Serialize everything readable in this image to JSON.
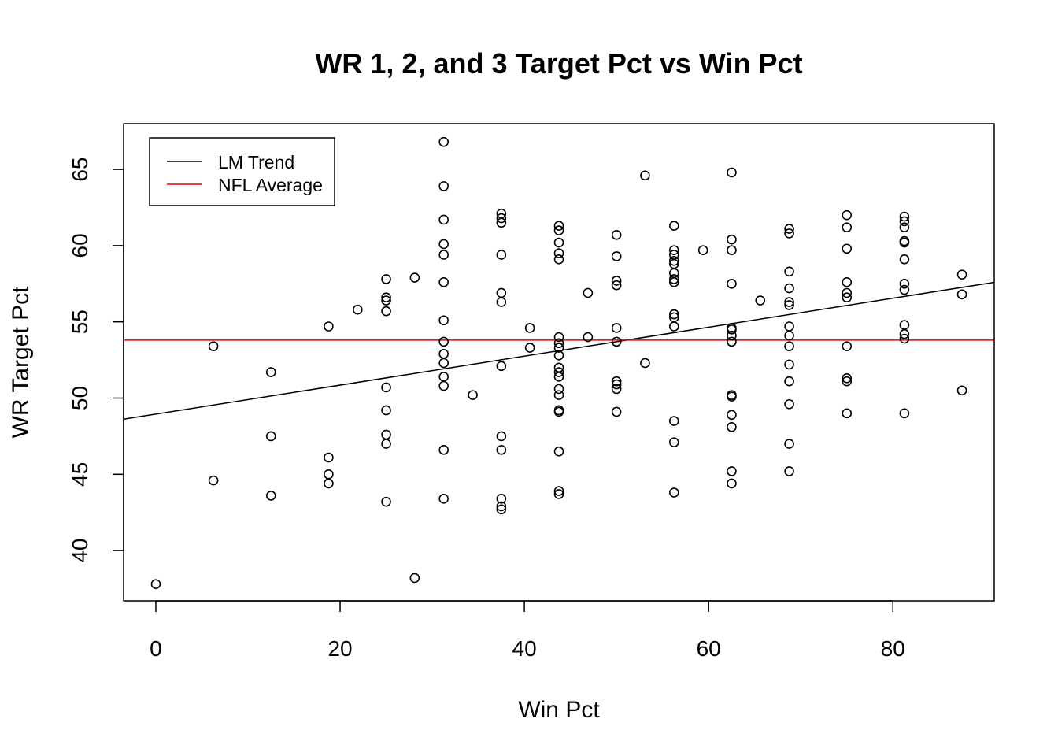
{
  "chart_data": {
    "type": "scatter",
    "title": "WR 1, 2, and 3 Target Pct vs Win Pct",
    "xlabel": "Win Pct",
    "ylabel": "WR Target Pct",
    "xlim": [
      -3.5,
      91
    ],
    "ylim": [
      36.7,
      68
    ],
    "xticks": [
      0,
      20,
      40,
      60,
      80
    ],
    "yticks": [
      40,
      45,
      50,
      55,
      60,
      65
    ],
    "grid": false,
    "legend": {
      "placement": "top-left",
      "entries": [
        {
          "label": "LM Trend",
          "color": "#000000"
        },
        {
          "label": "NFL Average",
          "color": "#dd0000"
        }
      ]
    },
    "lines": {
      "lm_trend": {
        "intercept": 48.95,
        "slope": 0.095,
        "color": "#000000"
      },
      "nfl_average": {
        "y": 53.8,
        "color": "#dd0000"
      }
    },
    "points": [
      [
        0,
        37.8
      ],
      [
        6.25,
        53.4
      ],
      [
        6.25,
        44.6
      ],
      [
        12.5,
        51.7
      ],
      [
        12.5,
        47.5
      ],
      [
        12.5,
        43.6
      ],
      [
        18.75,
        54.7
      ],
      [
        18.75,
        46.1
      ],
      [
        18.75,
        45.0
      ],
      [
        18.75,
        44.4
      ],
      [
        21.9,
        55.8
      ],
      [
        25,
        57.8
      ],
      [
        25,
        56.6
      ],
      [
        25,
        56.4
      ],
      [
        25,
        55.7
      ],
      [
        25,
        50.7
      ],
      [
        25,
        49.2
      ],
      [
        25,
        47.6
      ],
      [
        25,
        47.0
      ],
      [
        25,
        43.2
      ],
      [
        28.1,
        57.9
      ],
      [
        28.1,
        38.2
      ],
      [
        31.25,
        66.8
      ],
      [
        31.25,
        63.9
      ],
      [
        31.25,
        61.7
      ],
      [
        31.25,
        60.1
      ],
      [
        31.25,
        59.4
      ],
      [
        31.25,
        57.6
      ],
      [
        31.25,
        55.1
      ],
      [
        31.25,
        53.7
      ],
      [
        31.25,
        52.9
      ],
      [
        31.25,
        52.3
      ],
      [
        31.25,
        51.4
      ],
      [
        31.25,
        50.8
      ],
      [
        31.25,
        46.6
      ],
      [
        31.25,
        43.4
      ],
      [
        34.4,
        50.2
      ],
      [
        37.5,
        62.1
      ],
      [
        37.5,
        61.8
      ],
      [
        37.5,
        61.5
      ],
      [
        37.5,
        59.4
      ],
      [
        37.5,
        56.9
      ],
      [
        37.5,
        56.3
      ],
      [
        37.5,
        52.1
      ],
      [
        37.5,
        47.5
      ],
      [
        37.5,
        46.6
      ],
      [
        37.5,
        43.4
      ],
      [
        37.5,
        42.9
      ],
      [
        37.5,
        42.7
      ],
      [
        40.6,
        54.6
      ],
      [
        40.6,
        53.3
      ],
      [
        43.75,
        61.3
      ],
      [
        43.75,
        61.0
      ],
      [
        43.75,
        60.2
      ],
      [
        43.75,
        59.5
      ],
      [
        43.75,
        59.1
      ],
      [
        43.75,
        54.0
      ],
      [
        43.75,
        53.6
      ],
      [
        43.75,
        53.3
      ],
      [
        43.75,
        52.8
      ],
      [
        43.75,
        52.0
      ],
      [
        43.75,
        51.7
      ],
      [
        43.75,
        51.4
      ],
      [
        43.75,
        50.6
      ],
      [
        43.75,
        50.2
      ],
      [
        43.75,
        49.2
      ],
      [
        43.75,
        49.1
      ],
      [
        43.75,
        46.5
      ],
      [
        43.75,
        43.9
      ],
      [
        43.75,
        43.7
      ],
      [
        46.9,
        56.9
      ],
      [
        46.9,
        54.0
      ],
      [
        50,
        60.7
      ],
      [
        50,
        59.3
      ],
      [
        50,
        57.7
      ],
      [
        50,
        57.4
      ],
      [
        50,
        54.6
      ],
      [
        50,
        53.7
      ],
      [
        50,
        51.1
      ],
      [
        50,
        50.9
      ],
      [
        50,
        50.6
      ],
      [
        50,
        49.1
      ],
      [
        53.1,
        64.6
      ],
      [
        53.1,
        52.3
      ],
      [
        56.25,
        61.3
      ],
      [
        56.25,
        59.7
      ],
      [
        56.25,
        59.4
      ],
      [
        56.25,
        59.0
      ],
      [
        56.25,
        58.8
      ],
      [
        56.25,
        58.2
      ],
      [
        56.25,
        57.8
      ],
      [
        56.25,
        57.6
      ],
      [
        56.25,
        55.5
      ],
      [
        56.25,
        55.3
      ],
      [
        56.25,
        54.7
      ],
      [
        56.25,
        48.5
      ],
      [
        56.25,
        47.1
      ],
      [
        56.25,
        43.8
      ],
      [
        59.4,
        59.7
      ],
      [
        62.5,
        64.8
      ],
      [
        62.5,
        60.4
      ],
      [
        62.5,
        59.7
      ],
      [
        62.5,
        57.5
      ],
      [
        62.5,
        54.6
      ],
      [
        62.5,
        54.5
      ],
      [
        62.5,
        54.1
      ],
      [
        62.5,
        53.7
      ],
      [
        62.5,
        50.2
      ],
      [
        62.5,
        50.1
      ],
      [
        62.5,
        48.9
      ],
      [
        62.5,
        48.1
      ],
      [
        62.5,
        45.2
      ],
      [
        62.5,
        44.4
      ],
      [
        65.6,
        56.4
      ],
      [
        68.75,
        61.1
      ],
      [
        68.75,
        60.8
      ],
      [
        68.75,
        58.3
      ],
      [
        68.75,
        57.2
      ],
      [
        68.75,
        56.3
      ],
      [
        68.75,
        56.1
      ],
      [
        68.75,
        54.7
      ],
      [
        68.75,
        54.1
      ],
      [
        68.75,
        53.4
      ],
      [
        68.75,
        52.2
      ],
      [
        68.75,
        51.1
      ],
      [
        68.75,
        49.6
      ],
      [
        68.75,
        47.0
      ],
      [
        68.75,
        45.2
      ],
      [
        75,
        62.0
      ],
      [
        75,
        61.2
      ],
      [
        75,
        59.8
      ],
      [
        75,
        57.6
      ],
      [
        75,
        56.9
      ],
      [
        75,
        56.6
      ],
      [
        75,
        53.4
      ],
      [
        75,
        51.3
      ],
      [
        75,
        51.1
      ],
      [
        75,
        49.0
      ],
      [
        81.25,
        61.9
      ],
      [
        81.25,
        61.6
      ],
      [
        81.25,
        61.2
      ],
      [
        81.25,
        60.3
      ],
      [
        81.25,
        60.2
      ],
      [
        81.25,
        59.1
      ],
      [
        81.25,
        57.5
      ],
      [
        81.25,
        57.1
      ],
      [
        81.25,
        54.8
      ],
      [
        81.25,
        54.2
      ],
      [
        81.25,
        53.9
      ],
      [
        81.25,
        49.0
      ],
      [
        87.5,
        58.1
      ],
      [
        87.5,
        56.8
      ],
      [
        87.5,
        50.5
      ]
    ]
  }
}
